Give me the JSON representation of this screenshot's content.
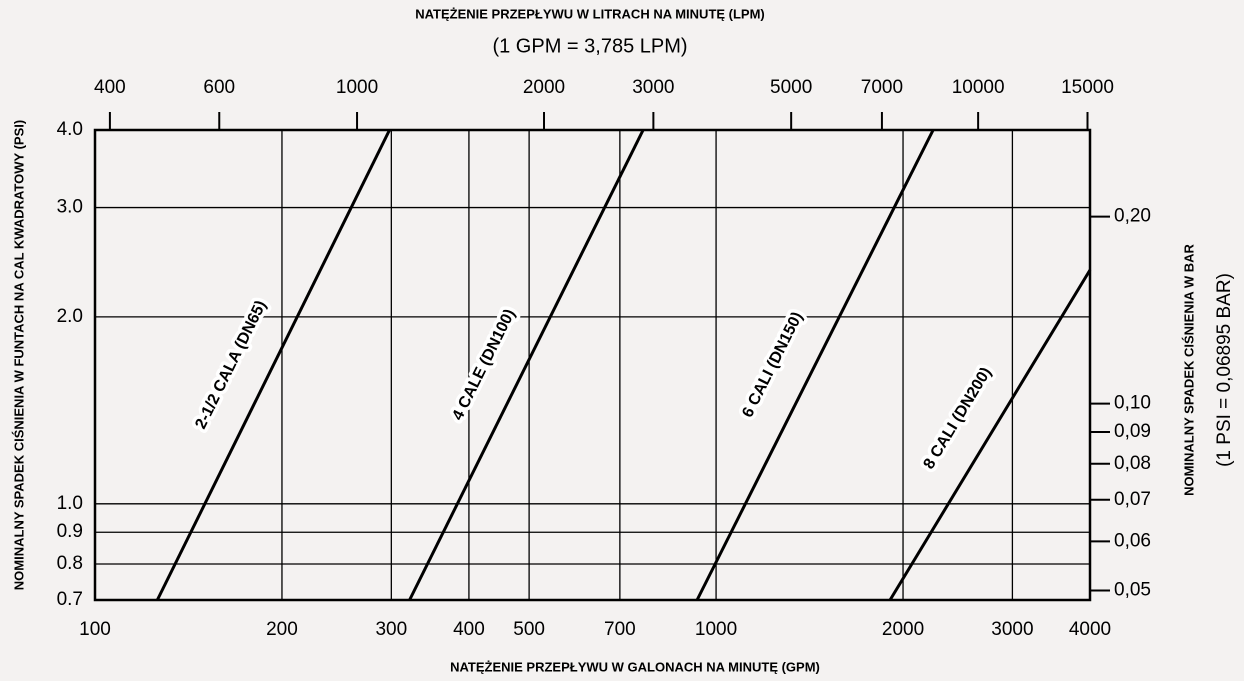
{
  "chart_data": {
    "type": "line",
    "title": "NATĘŻENIE PRZEPŁYWU W LITRACH NA MINUTĘ (LPM)",
    "subtitle": "(1 GPM = 3,785 LPM)",
    "x_label": "NATĘŻENIE PRZEPŁYWU W GALONACH NA MINUTĘ (GPM)",
    "y_label": "NOMINALNY SPADEK CIŚNIENIA W FUNTACH NA CAL KWADRATOWY (PSI)",
    "y2_label": "NOMINALNY SPADEK CIŚNIENIA W BAR",
    "y2_note": "(1 PSI = 0,06895 BAR)",
    "log_x": true,
    "log_y": true,
    "grid": true,
    "xlim": [
      100,
      4000
    ],
    "xticks": [
      100,
      200,
      300,
      400,
      500,
      700,
      1000,
      2000,
      3000,
      4000
    ],
    "ylim": [
      0.7,
      4.0
    ],
    "yticks": [
      0.7,
      0.8,
      0.9,
      {
        "value": 1.0,
        "label": "1.0"
      },
      {
        "value": 2.0,
        "label": "2.0"
      },
      {
        "value": 3.0,
        "label": "3.0"
      },
      {
        "value": 4.0,
        "label": "4.0"
      }
    ],
    "x2lim": [
      378.5,
      15140
    ],
    "x2ticks": [
      400,
      600,
      1000,
      2000,
      3000,
      5000,
      7000,
      10000,
      15000
    ],
    "y2lim": [
      0.048265,
      0.2758
    ],
    "y2ticks": [
      {
        "value": 0.05,
        "label": "0,05"
      },
      {
        "value": 0.06,
        "label": "0,06"
      },
      {
        "value": 0.07,
        "label": "0,07"
      },
      {
        "value": 0.08,
        "label": "0,08"
      },
      {
        "value": 0.09,
        "label": "0,09"
      },
      {
        "value": 0.1,
        "label": "0,10"
      },
      {
        "value": 0.2,
        "label": "0,20"
      }
    ],
    "series": [
      {
        "name": "2-1/2 CALA (DN65)",
        "color": "#000000",
        "x": [
          126,
          298
        ],
        "values": [
          0.7,
          4.0
        ]
      },
      {
        "name": "4 CALE (DN100)",
        "color": "#000000",
        "x": [
          321,
          763
        ],
        "values": [
          0.7,
          4.0
        ]
      },
      {
        "name": "6 CALI (DN150)",
        "color": "#000000",
        "x": [
          932,
          2236
        ],
        "values": [
          0.7,
          4.0
        ]
      },
      {
        "name": "8 CALI (DN200)",
        "color": "#000000",
        "x": [
          1906,
          4000
        ],
        "values": [
          0.7,
          2.38
        ]
      }
    ]
  }
}
